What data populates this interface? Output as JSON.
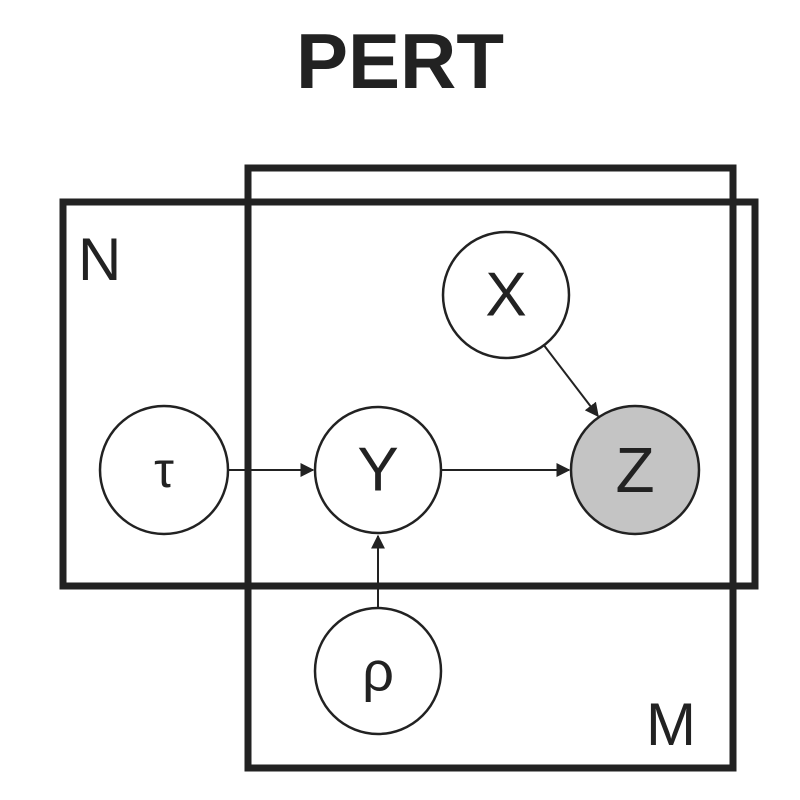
{
  "title": "PERT",
  "colors": {
    "ink": "#222222",
    "observed_fill": "#c4c4c4",
    "latent_fill": "#ffffff"
  },
  "plates": [
    {
      "id": "N",
      "label": "N"
    },
    {
      "id": "M",
      "label": "M"
    }
  ],
  "nodes": [
    {
      "id": "tau",
      "label": "τ",
      "observed": false
    },
    {
      "id": "Y",
      "label": "Y",
      "observed": false
    },
    {
      "id": "X",
      "label": "X",
      "observed": false
    },
    {
      "id": "Z",
      "label": "Z",
      "observed": true
    },
    {
      "id": "rho",
      "label": "ρ",
      "observed": false
    }
  ],
  "edges": [
    {
      "from": "tau",
      "to": "Y"
    },
    {
      "from": "Y",
      "to": "Z"
    },
    {
      "from": "X",
      "to": "Z"
    },
    {
      "from": "rho",
      "to": "Y"
    }
  ]
}
